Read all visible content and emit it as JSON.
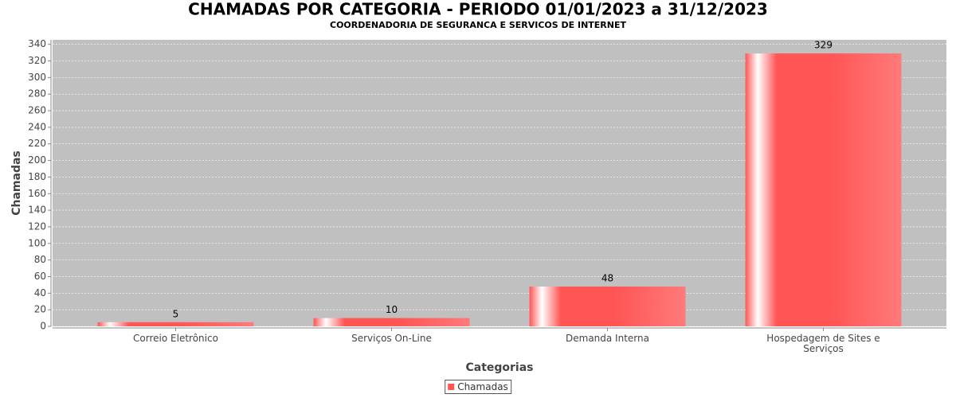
{
  "chart_data": {
    "type": "bar",
    "title": "CHAMADAS POR CATEGORIA - PERIODO 01/01/2023 a 31/12/2023",
    "subtitle": "COORDENADORIA DE SEGURANCA E SERVICOS DE INTERNET",
    "x_label": "Categorias",
    "y_label": "Chamadas",
    "categories": [
      "Correio Eletrônico",
      "Serviços On-Line",
      "Demanda Interna",
      "Hospedagem de Sites e Serviços"
    ],
    "series": [
      {
        "name": "Chamadas",
        "color": "#ff5555",
        "values": [
          5,
          10,
          48,
          329
        ]
      }
    ],
    "ylim": [
      0,
      345.45
    ],
    "yticks": [
      0,
      20,
      40,
      60,
      80,
      100,
      120,
      140,
      160,
      180,
      200,
      220,
      240,
      260,
      280,
      300,
      320,
      340
    ],
    "grid": true,
    "legend": "bottom"
  }
}
